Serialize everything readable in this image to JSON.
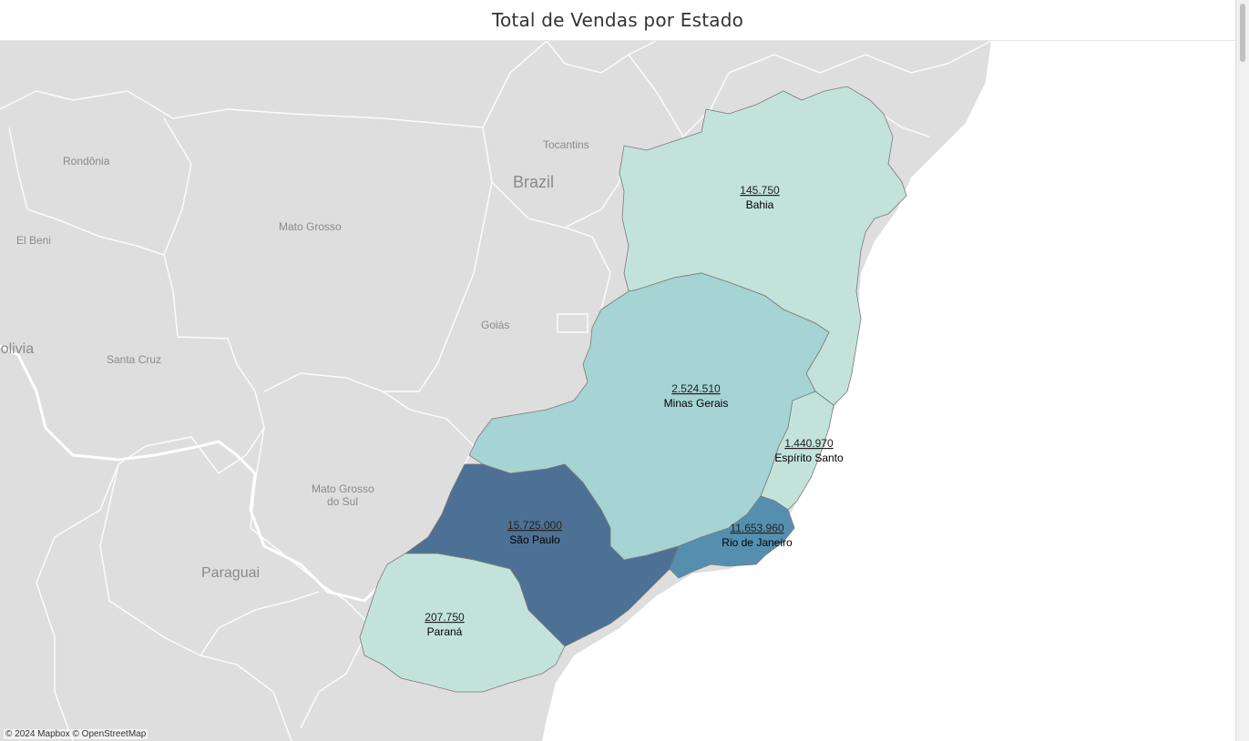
{
  "title": "Total de Vendas por Estado",
  "attribution": "© 2024 Mapbox © OpenStreetMap",
  "colors": {
    "background_land": "#dedede",
    "ocean": "#ffffff",
    "border": "#ffffff",
    "state_light": "#c3e3da",
    "state_mid": "#a6d3d4",
    "state_dark": "#4d7195",
    "state_darker": "#558fb0"
  },
  "geo_labels": {
    "brazil": "Brazil",
    "tocantins": "Tocantins",
    "rondonia": "Rondônia",
    "mato_grosso": "Mato Grosso",
    "el_beni": "El Beni",
    "goias": "Goiás",
    "bolivia": "Bolivia",
    "santa_cruz": "Santa Cruz",
    "mato_grosso_do_sul_1": "Mato Grosso",
    "mato_grosso_do_sul_2": "do Sul",
    "paraguai": "Paraguai"
  },
  "chart_data": {
    "type": "filled-map",
    "title": "Total de Vendas por Estado",
    "regions": [
      {
        "name": "Bahia",
        "value": 145750,
        "label": "145.750"
      },
      {
        "name": "Minas Gerais",
        "value": 2524510,
        "label": "2.524.510"
      },
      {
        "name": "Espírito Santo",
        "value": 1440970,
        "label": "1.440.970"
      },
      {
        "name": "São Paulo",
        "value": 15725000,
        "label": "15.725.000"
      },
      {
        "name": "Rio de Janeiro",
        "value": 11653960,
        "label": "11.653.960"
      },
      {
        "name": "Paraná",
        "value": 207750,
        "label": "207.750"
      }
    ]
  }
}
